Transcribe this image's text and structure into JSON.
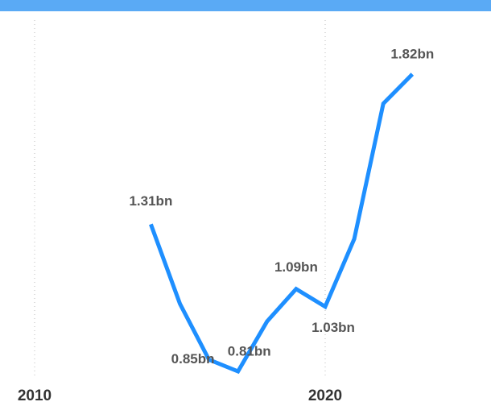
{
  "chart_data": {
    "type": "line",
    "x": [
      2014,
      2015,
      2016,
      2017,
      2018,
      2019,
      2020,
      2021,
      2022,
      2023
    ],
    "series": [
      {
        "color": "#1e8fff",
        "values": [
          1.31,
          1.04,
          0.85,
          0.81,
          0.98,
          1.09,
          1.03,
          1.26,
          1.72,
          1.82
        ],
        "value_labels": [
          "1.31bn",
          null,
          "0.85bn",
          "0.81bn",
          null,
          "1.09bn",
          "1.03bn",
          null,
          null,
          "1.82bn"
        ]
      }
    ],
    "xlim": [
      2009,
      2025
    ],
    "xticks": [
      2010,
      2020
    ],
    "ylim": [
      0.8,
      2.0
    ],
    "grid": true
  }
}
